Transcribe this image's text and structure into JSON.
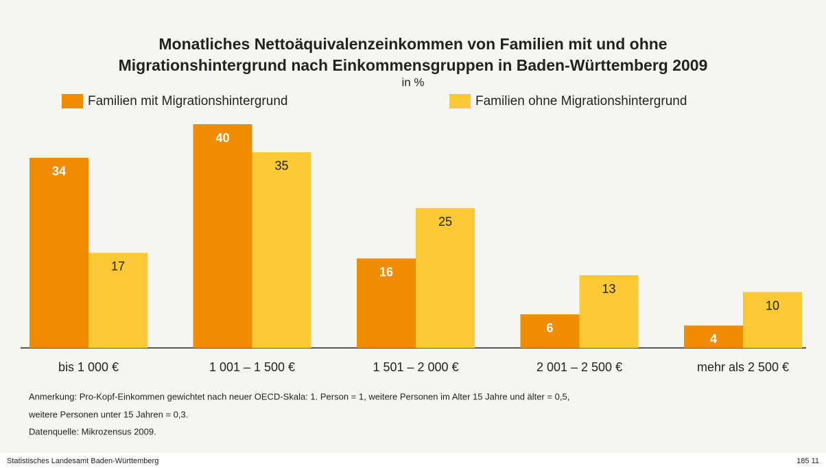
{
  "chart_data": {
    "type": "bar",
    "title": [
      "Monatliches Nettoäquivalenzeinkommen von Familien mit und ohne",
      "Migrationshintergrund nach Einkommensgruppen in Baden-Württemberg 2009"
    ],
    "subtitle": "in %",
    "categories": [
      "bis 1 000 €",
      "1 001 – 1 500 €",
      "1 501 – 2 000 €",
      "2 001 – 2 500 €",
      "mehr als 2 500 €"
    ],
    "series": [
      {
        "name": "Familien mit Migrationshintergrund",
        "color": "#ef8c00",
        "values": [
          34,
          40,
          16,
          6,
          4
        ]
      },
      {
        "name": "Familien ohne Migrationshintergrund",
        "color": "#fbc934",
        "values": [
          17,
          35,
          25,
          13,
          10
        ]
      }
    ],
    "notes": [
      "Anmerkung: Pro-Kopf-Einkommen gewichtet nach neuer OECD-Skala: 1. Person = 1, weitere Personen im Alter 15 Jahre und älter = 0,5,",
      "weitere Personen unter 15 Jahren = 0,3.",
      "Datenquelle: Mikrozensus 2009."
    ],
    "source": "Statistisches Landesamt Baden-Württemberg",
    "code": "185 11"
  }
}
